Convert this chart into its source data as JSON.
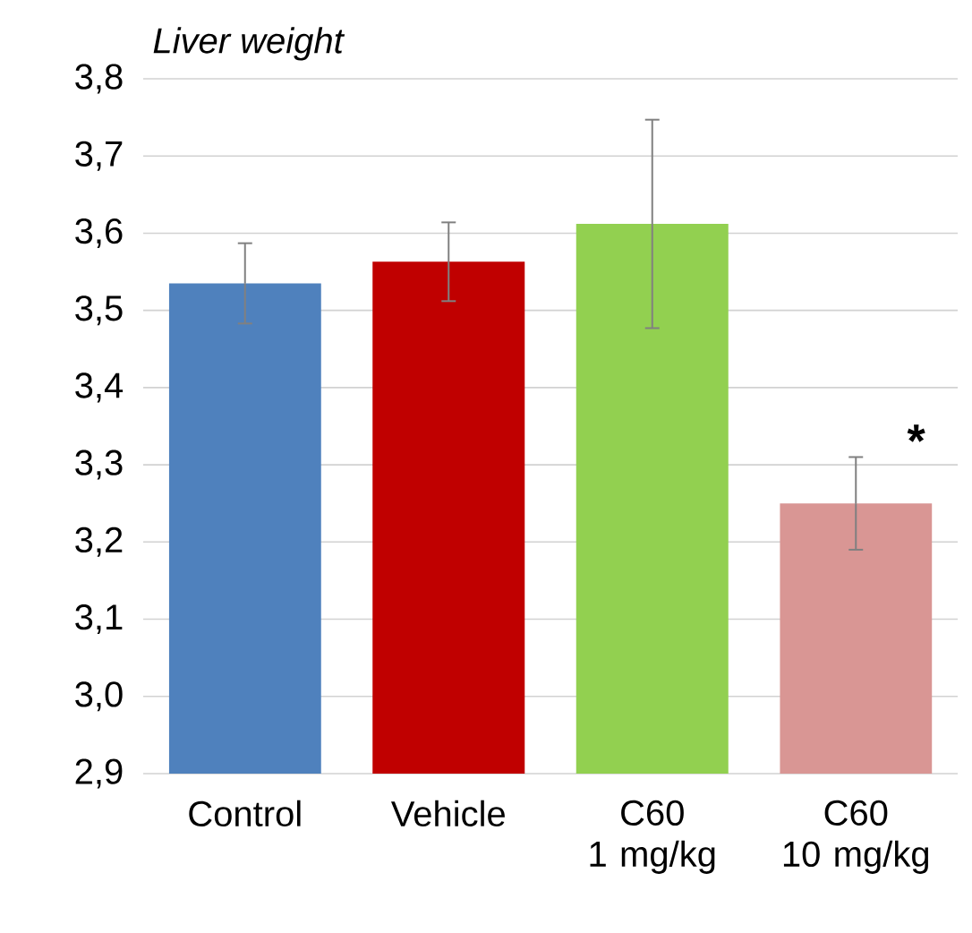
{
  "chart_data": {
    "type": "bar",
    "title": "Liver weight",
    "categories": [
      "Control",
      "Vehicle",
      "C60 1 mg/kg",
      "C60 10 mg/kg"
    ],
    "values": [
      3.535,
      3.563,
      3.612,
      3.25
    ],
    "errors": [
      0.052,
      0.051,
      0.135,
      0.06
    ],
    "colors": [
      "#4f81bd",
      "#c00000",
      "#92d050",
      "#d99694"
    ],
    "ylim": [
      2.9,
      3.8
    ],
    "yticks": [
      {
        "value": 2.9,
        "label": "2,9"
      },
      {
        "value": 3.0,
        "label": "3,0"
      },
      {
        "value": 3.1,
        "label": "3,1"
      },
      {
        "value": 3.2,
        "label": "3,2"
      },
      {
        "value": 3.3,
        "label": "3,3"
      },
      {
        "value": 3.4,
        "label": "3,4"
      },
      {
        "value": 3.5,
        "label": "3,5"
      },
      {
        "value": 3.6,
        "label": "3,6"
      },
      {
        "value": 3.7,
        "label": "3,7"
      },
      {
        "value": 3.8,
        "label": "3,8"
      }
    ],
    "grid": "y",
    "annotations": [
      "*"
    ]
  }
}
